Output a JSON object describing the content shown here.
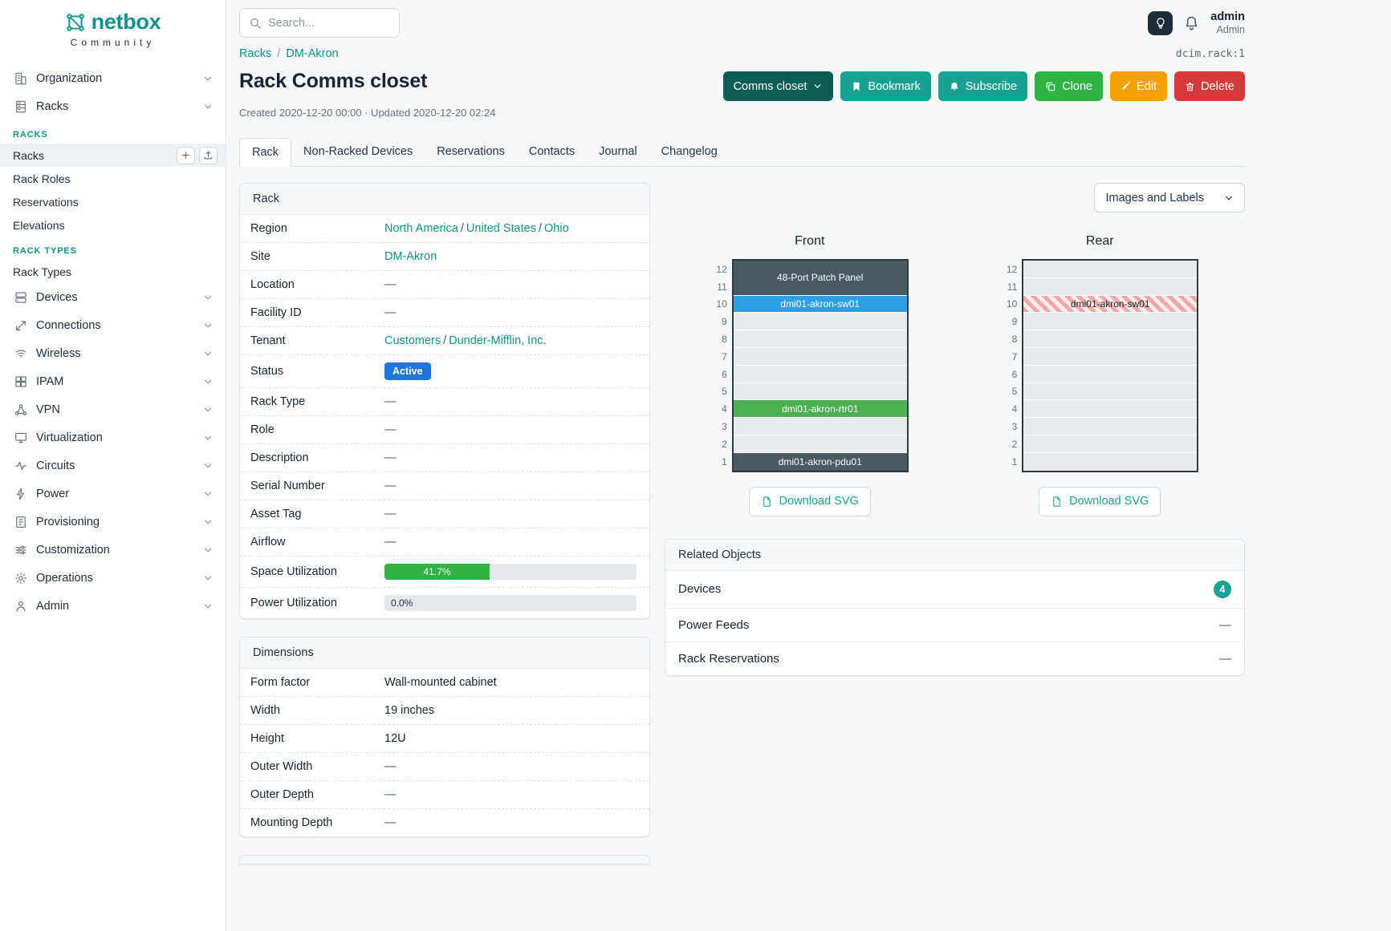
{
  "colors": {
    "accent_teal": "#0d9488",
    "button_teal": "#17a292",
    "button_dark_teal": "#0c5d54",
    "button_green": "#2fb344",
    "button_orange": "#f59f00",
    "button_red": "#d63939",
    "status_blue": "#2076d6",
    "progress_green": "#2fb344",
    "badge_teal": "#17a292"
  },
  "brand": {
    "name": "netbox",
    "subtitle": "Community"
  },
  "topbar": {
    "search_placeholder": "Search...",
    "user": {
      "name": "admin",
      "role": "Admin"
    }
  },
  "sidebar": {
    "items": [
      {
        "label": "Organization"
      },
      {
        "label": "Racks"
      },
      {
        "label": "Devices"
      },
      {
        "label": "Connections"
      },
      {
        "label": "Wireless"
      },
      {
        "label": "IPAM"
      },
      {
        "label": "VPN"
      },
      {
        "label": "Virtualization"
      },
      {
        "label": "Circuits"
      },
      {
        "label": "Power"
      },
      {
        "label": "Provisioning"
      },
      {
        "label": "Customization"
      },
      {
        "label": "Operations"
      },
      {
        "label": "Admin"
      }
    ],
    "racks_section": {
      "heading": "RACKS",
      "items": [
        "Racks",
        "Rack Roles",
        "Reservations",
        "Elevations"
      ]
    },
    "rack_types_section": {
      "heading": "RACK TYPES",
      "items": [
        "Rack Types"
      ]
    }
  },
  "breadcrumb": {
    "links": [
      "Racks",
      "DM-Akron"
    ],
    "separator": "/",
    "object_ref": "dcim.rack:1"
  },
  "page": {
    "title": "Rack Comms closet",
    "meta": "Created 2020-12-20 00:00 · Updated 2020-12-20 02:24"
  },
  "actions": {
    "context_button": "Comms closet",
    "bookmark": "Bookmark",
    "subscribe": "Subscribe",
    "clone": "Clone",
    "edit": "Edit",
    "delete": "Delete"
  },
  "tabs": [
    {
      "label": "Rack",
      "active": true
    },
    {
      "label": "Non-Racked Devices"
    },
    {
      "label": "Reservations"
    },
    {
      "label": "Contacts"
    },
    {
      "label": "Journal"
    },
    {
      "label": "Changelog"
    }
  ],
  "rack_card": {
    "title": "Rack",
    "region": {
      "label": "Region",
      "links": [
        "North America",
        "United States",
        "Ohio"
      ],
      "separator": "/"
    },
    "site": {
      "label": "Site",
      "link": "DM-Akron"
    },
    "location": {
      "label": "Location",
      "value": "—"
    },
    "facility_id": {
      "label": "Facility ID",
      "value": "—"
    },
    "tenant": {
      "label": "Tenant",
      "links": [
        "Customers",
        "Dunder-Mifflin, Inc."
      ],
      "separator": "/"
    },
    "status": {
      "label": "Status",
      "badge": "Active"
    },
    "rack_type": {
      "label": "Rack Type",
      "value": "—"
    },
    "role": {
      "label": "Role",
      "value": "—"
    },
    "description": {
      "label": "Description",
      "value": "—"
    },
    "serial_number": {
      "label": "Serial Number",
      "value": "—"
    },
    "asset_tag": {
      "label": "Asset Tag",
      "value": "—"
    },
    "airflow": {
      "label": "Airflow",
      "value": "—"
    },
    "space_utilization": {
      "label": "Space Utilization",
      "percent": 41.7,
      "display": "41.7%"
    },
    "power_utilization": {
      "label": "Power Utilization",
      "percent": 0,
      "display": "0.0%"
    }
  },
  "dimensions_card": {
    "title": "Dimensions",
    "form_factor": {
      "label": "Form factor",
      "value": "Wall-mounted cabinet"
    },
    "width": {
      "label": "Width",
      "value": "19 inches"
    },
    "height": {
      "label": "Height",
      "value": "12U"
    },
    "outer_width": {
      "label": "Outer Width",
      "value": "—"
    },
    "outer_depth": {
      "label": "Outer Depth",
      "value": "—"
    },
    "mounting_depth": {
      "label": "Mounting Depth",
      "value": "—"
    }
  },
  "elevations": {
    "display_select": "Images and Labels",
    "hatch_colors": [
      "#f2a6a6",
      "#fdecec"
    ],
    "front": {
      "title": "Front",
      "download_label": "Download SVG",
      "units": [
        12,
        11,
        10,
        9,
        8,
        7,
        6,
        5,
        4,
        3,
        2,
        1
      ],
      "slots": [
        {
          "span": 2,
          "label": "48-Port Patch Panel",
          "bg": "#4a5962",
          "text": "#ffffff"
        },
        {
          "span": 1,
          "label": "dmi01-akron-sw01",
          "bg": "#2f9fe3",
          "text": "#ffffff"
        },
        {
          "span": 1
        },
        {
          "span": 1
        },
        {
          "span": 1
        },
        {
          "span": 1
        },
        {
          "span": 1
        },
        {
          "span": 1,
          "label": "dmi01-akron-rtr01",
          "bg": "#4caf50",
          "text": "#ffffff"
        },
        {
          "span": 1
        },
        {
          "span": 1
        },
        {
          "span": 1,
          "label": "dmi01-akron-pdu01",
          "bg": "#4a5962",
          "text": "#ffffff"
        }
      ]
    },
    "rear": {
      "title": "Rear",
      "download_label": "Download SVG",
      "units": [
        12,
        11,
        10,
        9,
        8,
        7,
        6,
        5,
        4,
        3,
        2,
        1
      ],
      "slots": [
        {
          "span": 1
        },
        {
          "span": 1
        },
        {
          "span": 1,
          "label": "dmi01-akron-sw01",
          "hatched": true,
          "text": "#182433"
        },
        {
          "span": 1
        },
        {
          "span": 1
        },
        {
          "span": 1
        },
        {
          "span": 1
        },
        {
          "span": 1
        },
        {
          "span": 1
        },
        {
          "span": 1
        },
        {
          "span": 1
        },
        {
          "span": 1
        }
      ]
    }
  },
  "related_card": {
    "title": "Related Objects",
    "rows": [
      {
        "label": "Devices",
        "count": "4"
      },
      {
        "label": "Power Feeds",
        "value": "—"
      },
      {
        "label": "Rack Reservations",
        "value": "—"
      }
    ]
  }
}
